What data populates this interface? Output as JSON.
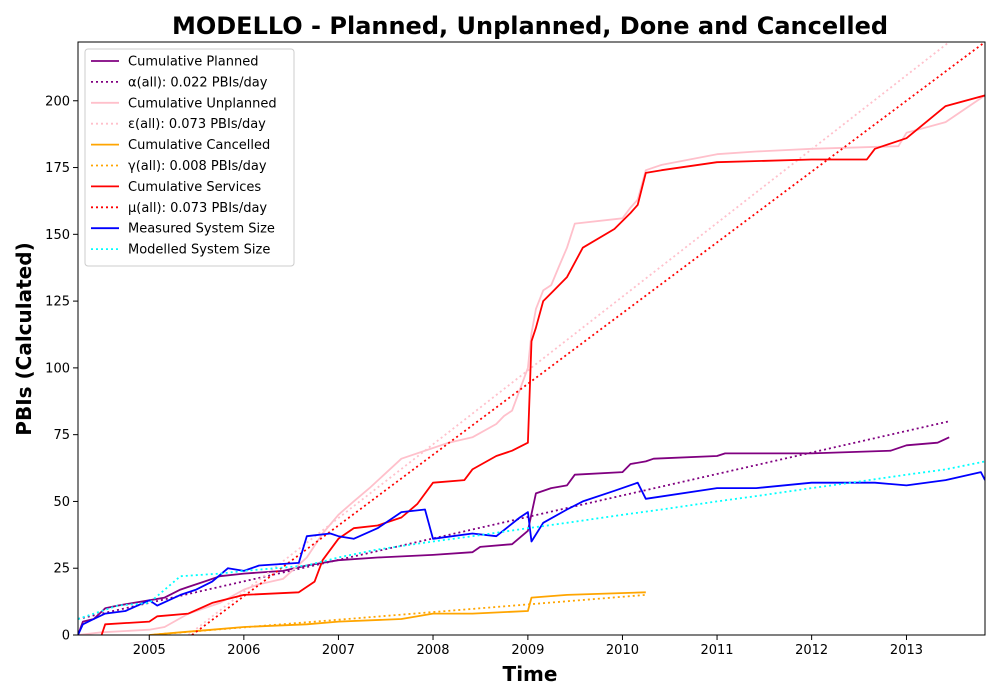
{
  "chart_data": {
    "type": "line",
    "title": "MODELLO - Planned, Unplanned, Done  and Cancelled",
    "xlabel": "Time",
    "ylabel": "PBIs (Calculated)",
    "xlim": [
      "2004-04-01",
      "2013-10-31"
    ],
    "ylim": [
      0,
      222
    ],
    "x_ticks": [
      "2005",
      "2006",
      "2007",
      "2008",
      "2009",
      "2010",
      "2011",
      "2012",
      "2013"
    ],
    "y_ticks": [
      0,
      25,
      50,
      75,
      100,
      125,
      150,
      175,
      200
    ],
    "grid": false,
    "legend_position": "upper-left",
    "series": [
      {
        "name": "Cumulative Planned",
        "color": "#800080",
        "style": "solid",
        "points": [
          [
            "2004-04-01",
            0
          ],
          [
            "2004-04-20",
            5
          ],
          [
            "2004-06-01",
            6
          ],
          [
            "2004-07-15",
            10
          ],
          [
            "2004-09-01",
            11
          ],
          [
            "2004-11-01",
            12
          ],
          [
            "2005-01-01",
            13
          ],
          [
            "2005-03-01",
            14
          ],
          [
            "2005-05-01",
            17
          ],
          [
            "2005-06-01",
            18
          ],
          [
            "2005-08-01",
            20
          ],
          [
            "2005-10-01",
            22
          ],
          [
            "2006-01-01",
            23
          ],
          [
            "2006-06-01",
            24
          ],
          [
            "2006-09-01",
            26
          ],
          [
            "2007-01-01",
            28
          ],
          [
            "2007-06-01",
            29
          ],
          [
            "2008-01-01",
            30
          ],
          [
            "2008-06-01",
            31
          ],
          [
            "2008-07-01",
            33
          ],
          [
            "2008-11-01",
            34
          ],
          [
            "2009-01-01",
            39
          ],
          [
            "2009-02-01",
            53
          ],
          [
            "2009-04-01",
            55
          ],
          [
            "2009-06-01",
            56
          ],
          [
            "2009-07-01",
            60
          ],
          [
            "2010-01-01",
            61
          ],
          [
            "2010-02-01",
            64
          ],
          [
            "2010-04-01",
            65
          ],
          [
            "2010-05-01",
            66
          ],
          [
            "2011-01-01",
            67
          ],
          [
            "2011-02-01",
            68
          ],
          [
            "2012-01-01",
            68
          ],
          [
            "2012-11-01",
            69
          ],
          [
            "2013-01-01",
            71
          ],
          [
            "2013-05-01",
            72
          ],
          [
            "2013-06-15",
            74
          ]
        ]
      },
      {
        "name": "α(all): 0.022 PBIs/day",
        "color": "#800080",
        "style": "dotted",
        "points": [
          [
            "2004-04-01",
            6
          ],
          [
            "2013-06-15",
            80
          ]
        ]
      },
      {
        "name": "Cumulative Unplanned",
        "color": "#ffc0cb",
        "style": "solid",
        "points": [
          [
            "2004-04-01",
            0
          ],
          [
            "2004-07-01",
            1
          ],
          [
            "2005-01-01",
            2
          ],
          [
            "2005-03-01",
            3
          ],
          [
            "2005-06-01",
            8
          ],
          [
            "2005-10-01",
            12
          ],
          [
            "2006-01-01",
            17
          ],
          [
            "2006-03-01",
            19
          ],
          [
            "2006-06-01",
            21
          ],
          [
            "2006-09-01",
            29
          ],
          [
            "2006-11-01",
            38
          ],
          [
            "2007-01-01",
            45
          ],
          [
            "2007-03-01",
            50
          ],
          [
            "2007-05-01",
            55
          ],
          [
            "2007-09-01",
            66
          ],
          [
            "2008-01-01",
            70
          ],
          [
            "2008-03-01",
            72
          ],
          [
            "2008-06-01",
            74
          ],
          [
            "2008-09-01",
            79
          ],
          [
            "2008-10-01",
            82
          ],
          [
            "2008-11-01",
            84
          ],
          [
            "2009-01-01",
            100
          ],
          [
            "2009-01-15",
            113
          ],
          [
            "2009-02-01",
            122
          ],
          [
            "2009-03-01",
            129
          ],
          [
            "2009-04-01",
            131
          ],
          [
            "2009-05-01",
            138
          ],
          [
            "2009-06-01",
            145
          ],
          [
            "2009-07-01",
            154
          ],
          [
            "2010-01-01",
            156
          ],
          [
            "2010-02-01",
            160
          ],
          [
            "2010-03-01",
            163
          ],
          [
            "2010-04-01",
            174
          ],
          [
            "2010-06-01",
            176
          ],
          [
            "2011-01-01",
            180
          ],
          [
            "2011-06-01",
            181
          ],
          [
            "2012-01-01",
            182
          ],
          [
            "2012-12-01",
            183
          ],
          [
            "2013-01-01",
            188
          ],
          [
            "2013-06-01",
            192
          ],
          [
            "2013-10-31",
            202
          ]
        ]
      },
      {
        "name": "ε(all): 0.073 PBIs/day",
        "color": "#ffc0cb",
        "style": "dotted",
        "points": [
          [
            "2005-06-01",
            0
          ],
          [
            "2013-06-15",
            222
          ]
        ]
      },
      {
        "name": "Cumulative Cancelled",
        "color": "#ffa500",
        "style": "solid",
        "points": [
          [
            "2005-01-01",
            0
          ],
          [
            "2005-05-01",
            1
          ],
          [
            "2005-09-01",
            2
          ],
          [
            "2006-01-01",
            3
          ],
          [
            "2006-09-01",
            4
          ],
          [
            "2007-01-01",
            5
          ],
          [
            "2007-09-01",
            6
          ],
          [
            "2008-01-01",
            8
          ],
          [
            "2008-06-01",
            8
          ],
          [
            "2009-01-01",
            9
          ],
          [
            "2009-01-15",
            14
          ],
          [
            "2009-06-01",
            15
          ],
          [
            "2010-04-01",
            16
          ]
        ]
      },
      {
        "name": "γ(all): 0.008 PBIs/day",
        "color": "#ffa500",
        "style": "dotted",
        "points": [
          [
            "2005-01-01",
            0
          ],
          [
            "2010-04-01",
            15
          ]
        ]
      },
      {
        "name": "Cumulative Services",
        "color": "#ff0000",
        "style": "solid",
        "points": [
          [
            "2004-07-01",
            0
          ],
          [
            "2004-07-15",
            4
          ],
          [
            "2005-01-01",
            5
          ],
          [
            "2005-02-01",
            7
          ],
          [
            "2005-06-01",
            8
          ],
          [
            "2005-09-01",
            12
          ],
          [
            "2006-01-01",
            15
          ],
          [
            "2006-08-01",
            16
          ],
          [
            "2006-10-01",
            20
          ],
          [
            "2006-11-01",
            28
          ],
          [
            "2007-01-01",
            36
          ],
          [
            "2007-03-01",
            40
          ],
          [
            "2007-06-01",
            41
          ],
          [
            "2007-09-01",
            44
          ],
          [
            "2007-11-01",
            49
          ],
          [
            "2008-01-01",
            57
          ],
          [
            "2008-05-01",
            58
          ],
          [
            "2008-06-01",
            62
          ],
          [
            "2008-09-01",
            67
          ],
          [
            "2008-11-01",
            69
          ],
          [
            "2009-01-01",
            72
          ],
          [
            "2009-01-15",
            110
          ],
          [
            "2009-02-01",
            115
          ],
          [
            "2009-03-01",
            125
          ],
          [
            "2009-04-01",
            128
          ],
          [
            "2009-06-01",
            134
          ],
          [
            "2009-08-01",
            145
          ],
          [
            "2009-12-01",
            152
          ],
          [
            "2010-02-01",
            158
          ],
          [
            "2010-03-01",
            161
          ],
          [
            "2010-04-01",
            173
          ],
          [
            "2010-06-01",
            174
          ],
          [
            "2011-01-01",
            177
          ],
          [
            "2012-01-01",
            178
          ],
          [
            "2012-08-01",
            178
          ],
          [
            "2012-09-01",
            182
          ],
          [
            "2013-01-01",
            186
          ],
          [
            "2013-06-01",
            198
          ],
          [
            "2013-10-31",
            202
          ]
        ]
      },
      {
        "name": "µ(all): 0.073 PBIs/day",
        "color": "#ff0000",
        "style": "dotted",
        "points": [
          [
            "2005-06-15",
            0
          ],
          [
            "2013-10-31",
            222
          ]
        ]
      },
      {
        "name": "Measured System Size",
        "color": "#0000ff",
        "style": "solid",
        "points": [
          [
            "2004-04-01",
            0
          ],
          [
            "2004-04-20",
            4
          ],
          [
            "2004-06-01",
            6
          ],
          [
            "2004-07-15",
            8
          ],
          [
            "2004-10-01",
            9
          ],
          [
            "2005-01-01",
            13
          ],
          [
            "2005-02-01",
            11
          ],
          [
            "2005-05-01",
            15
          ],
          [
            "2005-07-01",
            17
          ],
          [
            "2005-09-01",
            20
          ],
          [
            "2005-11-01",
            25
          ],
          [
            "2006-01-01",
            24
          ],
          [
            "2006-03-01",
            26
          ],
          [
            "2006-08-01",
            27
          ],
          [
            "2006-09-01",
            37
          ],
          [
            "2006-12-01",
            38
          ],
          [
            "2007-01-01",
            37
          ],
          [
            "2007-03-01",
            36
          ],
          [
            "2007-06-01",
            40
          ],
          [
            "2007-09-01",
            46
          ],
          [
            "2007-12-01",
            47
          ],
          [
            "2008-01-01",
            36
          ],
          [
            "2008-06-01",
            38
          ],
          [
            "2008-09-01",
            37
          ],
          [
            "2008-12-01",
            44
          ],
          [
            "2009-01-01",
            46
          ],
          [
            "2009-01-15",
            35
          ],
          [
            "2009-03-01",
            42
          ],
          [
            "2009-06-01",
            47
          ],
          [
            "2009-08-01",
            50
          ],
          [
            "2009-12-01",
            54
          ],
          [
            "2010-03-01",
            57
          ],
          [
            "2010-04-01",
            51
          ],
          [
            "2011-01-01",
            55
          ],
          [
            "2011-06-01",
            55
          ],
          [
            "2012-01-01",
            57
          ],
          [
            "2012-09-01",
            57
          ],
          [
            "2013-01-01",
            56
          ],
          [
            "2013-06-01",
            58
          ],
          [
            "2013-10-15",
            61
          ],
          [
            "2013-10-31",
            58
          ]
        ]
      },
      {
        "name": "Modelled System Size",
        "color": "#00ffff",
        "style": "dotted",
        "points": [
          [
            "2004-04-01",
            6
          ],
          [
            "2004-09-01",
            11
          ],
          [
            "2005-01-01",
            12
          ],
          [
            "2005-05-01",
            22
          ],
          [
            "2005-10-01",
            23
          ],
          [
            "2006-01-01",
            24
          ],
          [
            "2006-09-01",
            26
          ],
          [
            "2007-01-01",
            29
          ],
          [
            "2007-06-01",
            32
          ],
          [
            "2008-01-01",
            35
          ],
          [
            "2008-06-01",
            37
          ],
          [
            "2009-01-01",
            40
          ],
          [
            "2009-06-01",
            42
          ],
          [
            "2010-01-01",
            45
          ],
          [
            "2010-06-01",
            47
          ],
          [
            "2011-01-01",
            50
          ],
          [
            "2011-06-01",
            52
          ],
          [
            "2012-01-01",
            55
          ],
          [
            "2012-06-01",
            57
          ],
          [
            "2013-01-01",
            60
          ],
          [
            "2013-06-01",
            62
          ],
          [
            "2013-10-31",
            65
          ]
        ]
      }
    ]
  }
}
